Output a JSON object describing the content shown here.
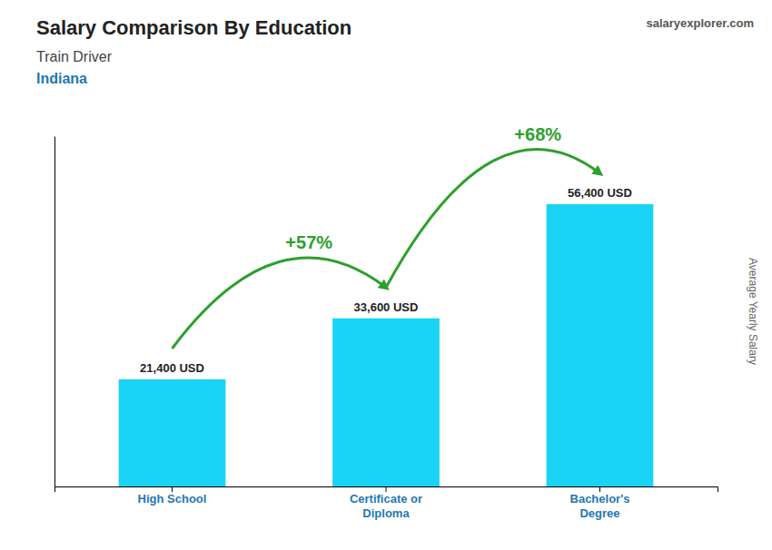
{
  "chart_data": {
    "type": "bar",
    "title": "Salary Comparison By Education",
    "subtitle": [
      "Train Driver",
      "Indiana"
    ],
    "source": "salaryexplorer.com",
    "ylabel": "Average Yearly Salary",
    "categories": [
      "High School",
      "Certificate or\nDiploma",
      "Bachelor's\nDegree"
    ],
    "values": [
      21400,
      33600,
      56400
    ],
    "value_labels": [
      "21,400 USD",
      "33,600 USD",
      "56,400 USD"
    ],
    "data_labels": true,
    "annotations": [
      "+57%",
      "+68%"
    ],
    "color": "#1ad4f5",
    "ylim": [
      0,
      70000
    ],
    "tick_labels": "x",
    "grid": false
  }
}
